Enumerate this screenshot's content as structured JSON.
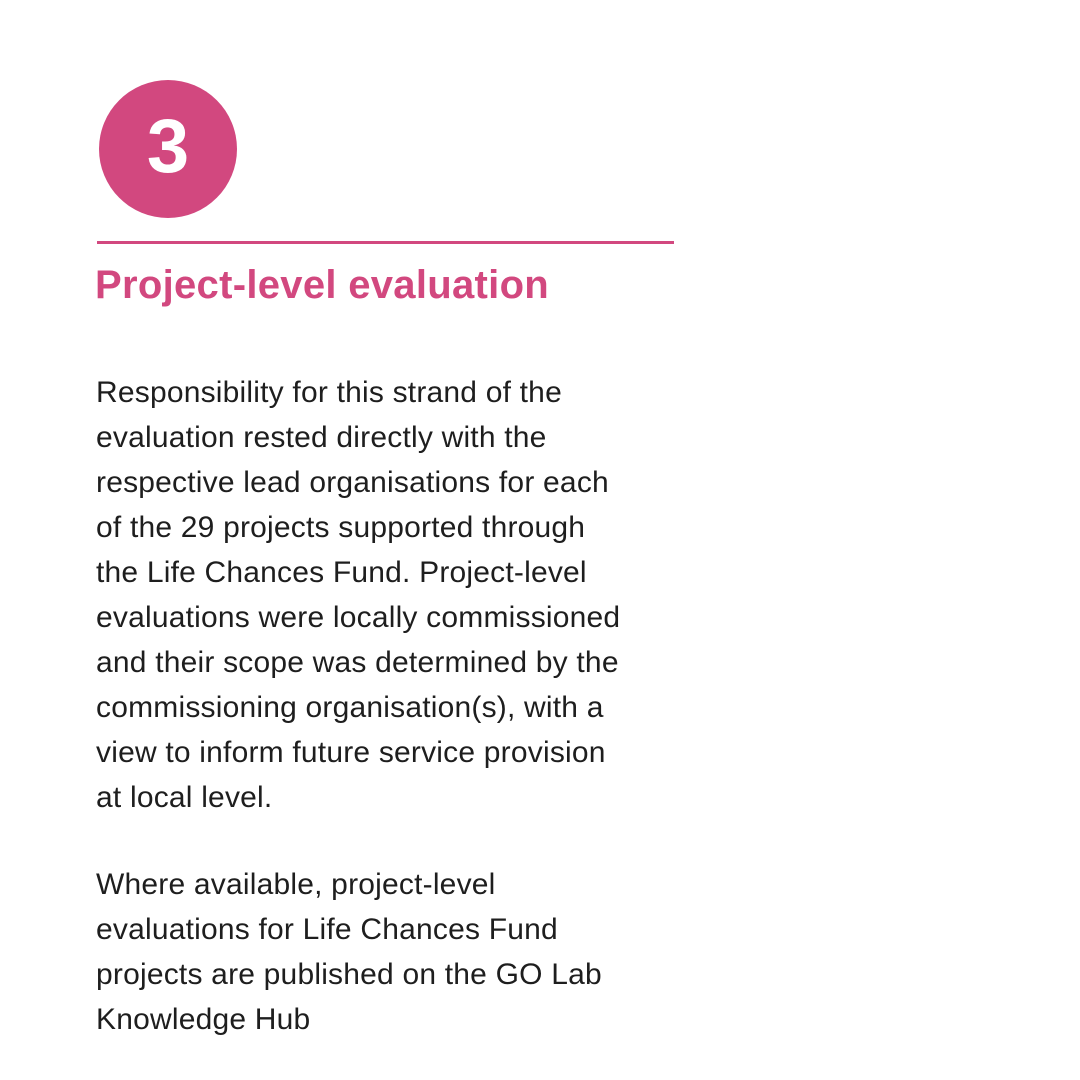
{
  "page": {
    "background_color": "#ffffff"
  },
  "section_badge": {
    "number": "3",
    "background_color": "#d2487f",
    "number_color": "#ffffff"
  },
  "divider": {
    "color": "#d2487f"
  },
  "heading": {
    "text": "Project-level evaluation",
    "color": "#d2487f"
  },
  "body": {
    "text_color": "#1e1e1e",
    "paragraphs": [
      "Responsibility for this strand of the\nevaluation rested directly with the\nrespective lead organisations for each\nof the 29 projects supported through\nthe Life Chances Fund. Project-level\nevaluations were locally commissioned\nand their scope was determined by the\ncommissioning organisation(s), with a\nview to inform future service provision\nat local level.",
      "Where available, project-level\nevaluations for Life Chances Fund\nprojects are published on the GO Lab\nKnowledge Hub"
    ]
  }
}
